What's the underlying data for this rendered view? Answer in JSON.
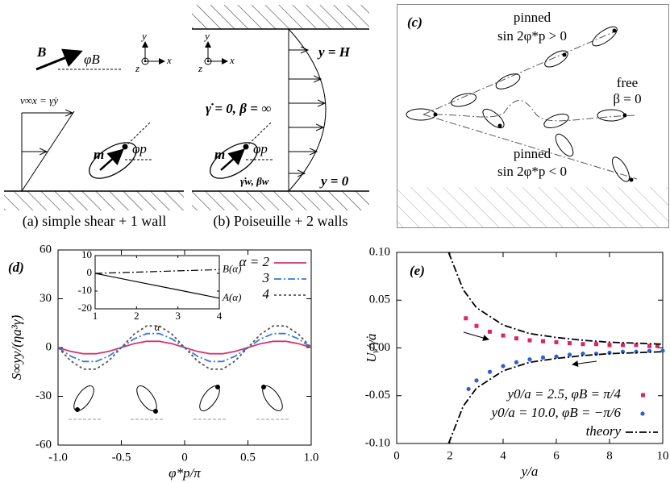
{
  "panels": {
    "a": {
      "B": "B",
      "phiB": "φB",
      "velocity": "v∞x = γ̇y",
      "m": "m",
      "phip": "φp",
      "axis_y": "y",
      "axis_x": "x",
      "axis_z": "z",
      "caption": "(a) simple shear + 1 wall"
    },
    "b": {
      "top": "y = H",
      "condition": "γ̇ = 0, β = ∞",
      "m": "m",
      "phip": "φp",
      "wall": "γ̇w, βw",
      "bottom": "y = 0",
      "axis_y": "y",
      "axis_x": "x",
      "axis_z": "z",
      "caption": "(b) Poiseuille + 2 walls"
    },
    "c": {
      "tag": "(c)",
      "pinned_up": "pinned",
      "cond_up": "sin 2φ*p > 0",
      "free": "free",
      "beta": "β = 0",
      "pinned_down": "pinned",
      "cond_down": "sin 2φ*p < 0"
    }
  },
  "chart_data": [
    {
      "type": "line",
      "title": "(d)",
      "xlabel": "φ*p/π",
      "ylabel": "S∞yy/(ηa³γ̇)",
      "xlim": [
        -1,
        1
      ],
      "ylim": [
        -60,
        60
      ],
      "xticks": [
        {
          "value": -1,
          "label": "-1.0"
        },
        -0.5,
        0,
        0.5,
        {
          "value": 1,
          "label": "1.0"
        }
      ],
      "yticks": [
        -60,
        -30,
        0,
        30,
        60
      ],
      "legend": "upper right",
      "x": [
        -1,
        -0.9,
        -0.8,
        -0.7,
        -0.6,
        -0.5,
        -0.4,
        -0.3,
        -0.2,
        -0.1,
        0,
        0.1,
        0.2,
        0.3,
        0.4,
        0.5,
        0.6,
        0.7,
        0.8,
        0.9,
        1
      ],
      "series": [
        {
          "name": "α = 2",
          "color": "#d6336c",
          "style": "solid",
          "values": [
            0,
            -2.4,
            -3.8,
            -3.8,
            -2.4,
            0,
            2.4,
            3.8,
            3.8,
            2.4,
            0,
            -2.4,
            -3.8,
            -3.8,
            -2.4,
            0,
            2.4,
            3.8,
            3.8,
            2.4,
            0
          ]
        },
        {
          "name": "3",
          "color": "#3a78d8",
          "style": "dashdot",
          "values": [
            0,
            -5.3,
            -8.6,
            -8.6,
            -5.3,
            0,
            5.3,
            8.6,
            8.6,
            5.3,
            0,
            -5.3,
            -8.6,
            -8.6,
            -5.3,
            0,
            5.3,
            8.6,
            8.6,
            5.3,
            0
          ]
        },
        {
          "name": "4",
          "color": "#555555",
          "style": "dotted",
          "values": [
            0,
            -8.2,
            -13.3,
            -13.3,
            -8.2,
            0,
            8.2,
            13.3,
            13.3,
            8.2,
            0,
            -8.2,
            -13.3,
            -13.3,
            -8.2,
            0,
            8.2,
            13.3,
            13.3,
            8.2,
            0
          ]
        }
      ],
      "inset": {
        "type": "line",
        "xlabel": "α",
        "xlim": [
          1,
          4
        ],
        "ylim": [
          -20,
          10
        ],
        "xticks": [
          1,
          2,
          3,
          4
        ],
        "yticks": [
          -20,
          -10,
          0,
          10
        ],
        "legend": "line end",
        "x": [
          1,
          2,
          3,
          4
        ],
        "series": [
          {
            "name": "B(α)",
            "color": "#000000",
            "style": "dashdot",
            "values": [
              0,
              0.7,
              1.4,
              2.1
            ]
          },
          {
            "name": "A(α)",
            "color": "#000000",
            "style": "solid",
            "values": [
              0,
              -4.7,
              -9.3,
              -14
            ]
          }
        ]
      }
    },
    {
      "type": "scatter",
      "title": "(e)",
      "xlabel": "y/a",
      "ylabel": "Uᵧ/γ̇a",
      "xlim": [
        0,
        10
      ],
      "ylim": [
        -0.1,
        0.1
      ],
      "xticks": [
        0,
        2,
        4,
        6,
        8,
        10
      ],
      "yticks": [
        {
          "value": -0.1,
          "label": "-0.10"
        },
        -0.05,
        {
          "value": 0,
          "label": "0.00"
        },
        0.05,
        {
          "value": 0.1,
          "label": "0.10"
        }
      ],
      "legend": "lower right",
      "series": [
        {
          "name": "y0/a = 2.5, φB = π/4",
          "color": "#e0245e",
          "style": "square",
          "x": [
            2.6,
            3,
            3.5,
            4,
            4.5,
            5,
            5.5,
            6,
            6.5,
            7,
            7.5,
            8,
            8.5,
            9,
            9.5,
            9.8
          ],
          "values": [
            0.031,
            0.023,
            0.017,
            0.013,
            0.01,
            0.008,
            0.007,
            0.006,
            0.005,
            0.004,
            0.004,
            0.003,
            0.003,
            0.003,
            0.002,
            0.002
          ]
        },
        {
          "name": "y0/a = 10.0, φB = −π/6",
          "color": "#2f5fd0",
          "style": "circle",
          "x": [
            2.7,
            3,
            3.5,
            4,
            4.5,
            5,
            5.5,
            6,
            6.5,
            7,
            7.5,
            8,
            8.5,
            9,
            9.5,
            10
          ],
          "values": [
            -0.043,
            -0.034,
            -0.025,
            -0.019,
            -0.015,
            -0.012,
            -0.01,
            -0.009,
            -0.007,
            -0.006,
            -0.006,
            -0.005,
            -0.004,
            -0.004,
            -0.003,
            -0.003
          ]
        },
        {
          "name": "theory",
          "color": "#000000",
          "style": "dashdot",
          "x": [
            1.95,
            2.5,
            3,
            4,
            5,
            6,
            7,
            8,
            9,
            10,
            null,
            1.95,
            2.5,
            3,
            4,
            5,
            6,
            7,
            8,
            9,
            10
          ],
          "values": [
            0.1,
            0.061,
            0.042,
            0.024,
            0.015,
            0.011,
            0.008,
            0.006,
            0.005,
            0.004,
            null,
            -0.1,
            -0.061,
            -0.042,
            -0.024,
            -0.015,
            -0.011,
            -0.008,
            -0.006,
            -0.005,
            -0.004
          ]
        }
      ]
    }
  ]
}
